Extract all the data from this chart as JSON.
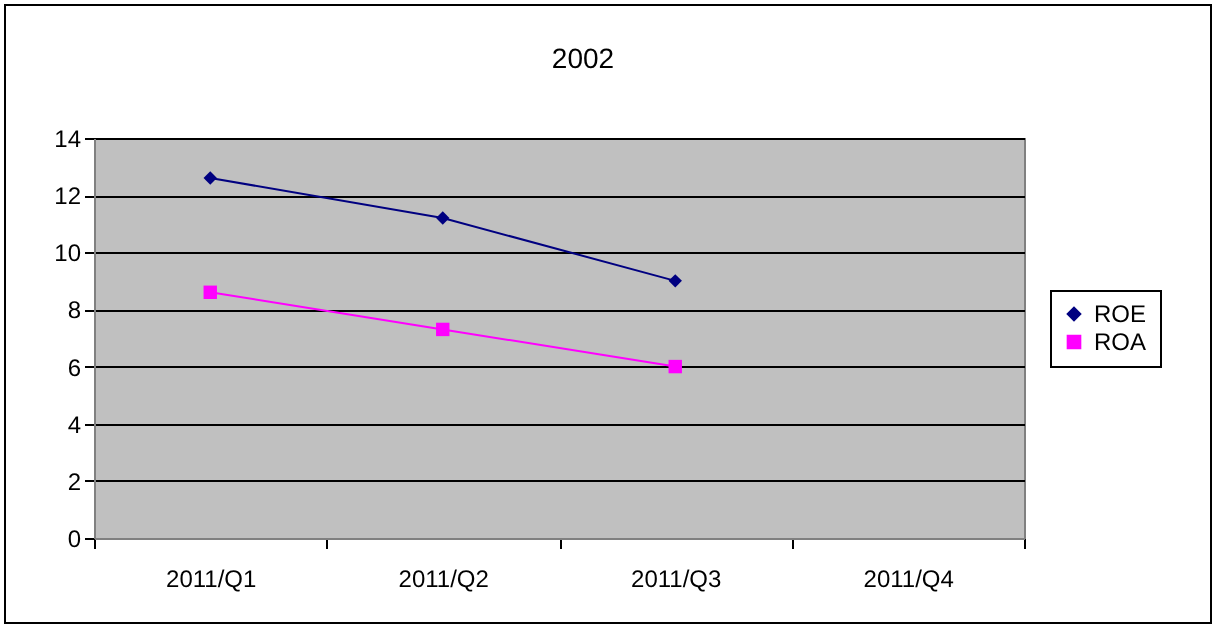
{
  "chart_data": {
    "type": "line",
    "title": "2002",
    "categories": [
      "2011/Q1",
      "2011/Q2",
      "2011/Q3",
      "2011/Q4"
    ],
    "series": [
      {
        "name": "ROE",
        "color": "#000080",
        "marker": "diamond",
        "values": [
          12.6,
          11.2,
          9.0,
          null
        ]
      },
      {
        "name": "ROA",
        "color": "#ff00ff",
        "marker": "square",
        "values": [
          8.6,
          7.3,
          6.0,
          null
        ]
      }
    ],
    "ylim": [
      0,
      14
    ],
    "yticks": [
      0,
      2,
      4,
      6,
      8,
      10,
      12,
      14
    ],
    "grid": "y",
    "legend": "right"
  }
}
